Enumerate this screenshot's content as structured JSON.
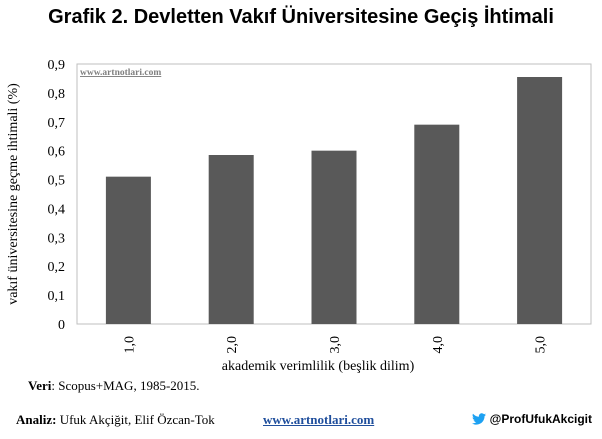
{
  "title": "Grafik 2. Devletten Vakıf Üniversitesine Geçiş İhtimali",
  "watermark": "www.artnotlari.com",
  "source_label": "Veri",
  "source_text": ": Scopus+MAG, 1985-2015.",
  "footer": {
    "analysis_label": "Analiz:",
    "analysis_text": " Ufuk Akçiğit, Elif Özcan-Tok",
    "site": "www.artnotlari.com",
    "handle": "@ProfUfukAkcigit",
    "twitter_icon": "twitter-bird-icon",
    "twitter_color": "#1DA1F2"
  },
  "chart_data": {
    "type": "bar",
    "categories": [
      "1,0",
      "2,0",
      "3,0",
      "4,0",
      "5,0"
    ],
    "values": [
      0.51,
      0.585,
      0.6,
      0.69,
      0.855
    ],
    "yticks": [
      "0",
      "0,1",
      "0,2",
      "0,3",
      "0,4",
      "0,5",
      "0,6",
      "0,7",
      "0,8",
      "0,9"
    ],
    "ylim": [
      0,
      0.9
    ],
    "xlabel": "akademik verimlilik (beşlik dilim)",
    "ylabel": "vakıf üniversitesine geçme ihtimali (%)",
    "bar_color": "#595959",
    "grid": false
  }
}
